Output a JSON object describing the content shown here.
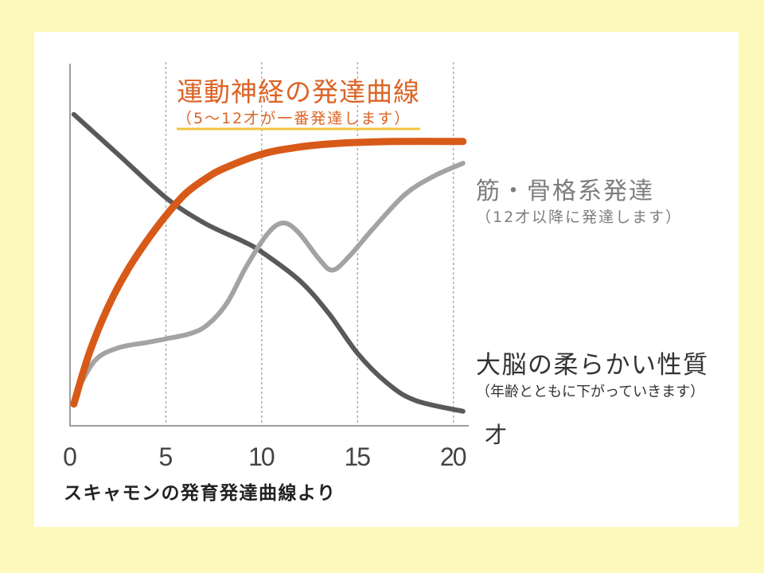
{
  "colors": {
    "page_background": "#fdf9bb",
    "panel_background": "#ffffff",
    "axis": "#9c9c9c",
    "grid": "#a9a9a9",
    "underline": "#f2c33e",
    "tick_text": "#444444",
    "unit_text": "#333333",
    "caption_text": "#222222"
  },
  "chart_data": {
    "type": "line",
    "xlabel": "才",
    "xlim": [
      0,
      20.8
    ],
    "ylim": [
      0,
      100
    ],
    "xticks": [
      0,
      5,
      10,
      15,
      20
    ],
    "grid": {
      "vertical": true,
      "horizontal": false
    },
    "legend": "none",
    "series": [
      {
        "name": "運動神経の発達曲線",
        "note": "（5〜12才が一番発達します）",
        "color": "#d85a18",
        "label_color": "#dc6426",
        "x": [
          0.2,
          1,
          2,
          3,
          4,
          5,
          6,
          7,
          8,
          10,
          12,
          14,
          17,
          20.5
        ],
        "y": [
          6,
          20,
          33,
          43,
          51,
          58,
          64,
          68,
          71,
          75,
          77,
          78,
          78.5,
          78.5
        ]
      },
      {
        "name": "筋・骨格系発達",
        "note": "（12才以降に発達します）",
        "color": "#a3a3a3",
        "label_color": "#7d7d7d",
        "x": [
          0.3,
          1.3,
          2.5,
          4,
          5,
          6.3,
          7.2,
          8.2,
          9.2,
          10.3,
          11.1,
          11.9,
          13,
          13.7,
          14.6,
          15.9,
          17.5,
          19,
          20.5
        ],
        "y": [
          9,
          18,
          21.5,
          23,
          24,
          25.5,
          28,
          34,
          44,
          53,
          56,
          53.5,
          46,
          43,
          47,
          55,
          64,
          69,
          72.5
        ]
      },
      {
        "name": "大脳の柔らかい性質",
        "note": "（年齢とともに下がっていきます）",
        "color": "#595959",
        "label_color": "#333333",
        "x": [
          0.2,
          2.5,
          5,
          7,
          9,
          10,
          12,
          13.5,
          15,
          16.5,
          18,
          20.5
        ],
        "y": [
          86,
          75,
          63,
          56,
          51,
          48,
          40,
          31,
          20,
          12,
          7,
          4
        ]
      }
    ],
    "source": "スキャモンの発育発達曲線より"
  }
}
